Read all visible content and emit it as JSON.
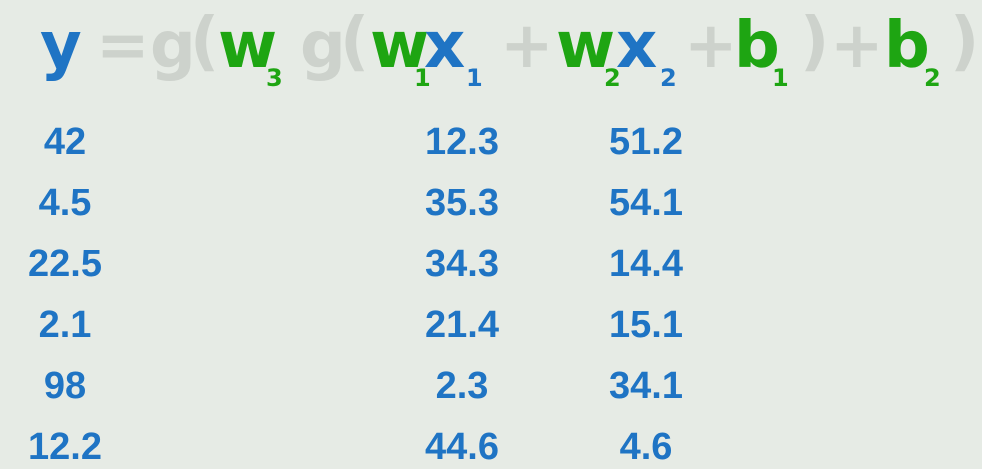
{
  "equation": {
    "y": "y",
    "equals": "=",
    "g_outer": "g",
    "paren_open_outer": "(",
    "w3": "w",
    "w3_sub": "3",
    "g_inner": "g",
    "paren_open_inner": "(",
    "w1": "w",
    "w1_sub": "1",
    "x1": "x",
    "x1_sub": "1",
    "plus1": "+",
    "w2": "w",
    "w2_sub": "2",
    "x2": "x",
    "x2_sub": "2",
    "plus2": "+",
    "b1": "b",
    "b1_sub": "1",
    "paren_close_inner": ")",
    "plus3": "+",
    "b2": "b",
    "b2_sub": "2",
    "paren_close_outer": ")"
  },
  "colors": {
    "output_variable": "#1f74c4",
    "parameters": "#1ea512",
    "operators": "#cdd2cc",
    "background": "#e6ebe5"
  },
  "table": {
    "y_values": [
      "42",
      "4.5",
      "22.5",
      "2.1",
      "98",
      "12.2"
    ],
    "x1_values": [
      "12.3",
      "35.3",
      "34.3",
      "21.4",
      "2.3",
      "44.6"
    ],
    "x2_values": [
      "51.2",
      "54.1",
      "14.4",
      "15.1",
      "34.1",
      "4.6"
    ]
  }
}
